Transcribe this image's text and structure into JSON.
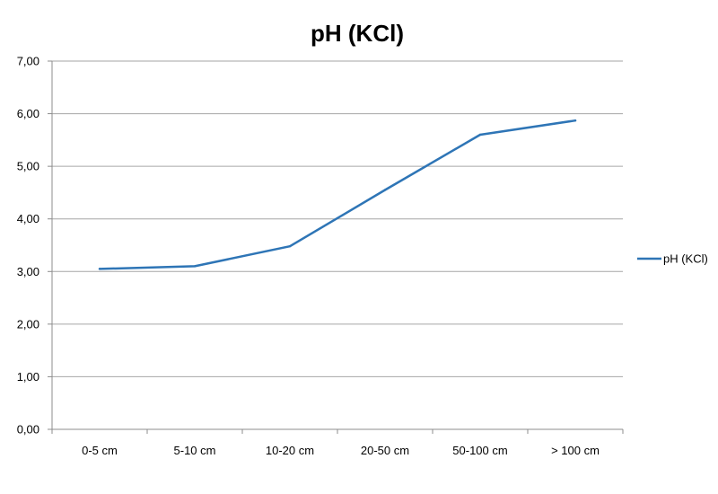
{
  "chart_data": {
    "type": "line",
    "title": "pH (KCl)",
    "xlabel": "",
    "ylabel": "",
    "categories": [
      "0-5 cm",
      "5-10 cm",
      "10-20 cm",
      "20-50 cm",
      "50-100 cm",
      "> 100 cm"
    ],
    "series": [
      {
        "name": "pH (KCl)",
        "values": [
          3.05,
          3.1,
          3.48,
          4.55,
          5.6,
          5.87
        ],
        "color": "#2e75b6"
      }
    ],
    "ylim": [
      0,
      7
    ],
    "yticks": [
      "0,00",
      "1,00",
      "2,00",
      "3,00",
      "4,00",
      "5,00",
      "6,00",
      "7,00"
    ],
    "grid": true,
    "legend_position": "right"
  }
}
